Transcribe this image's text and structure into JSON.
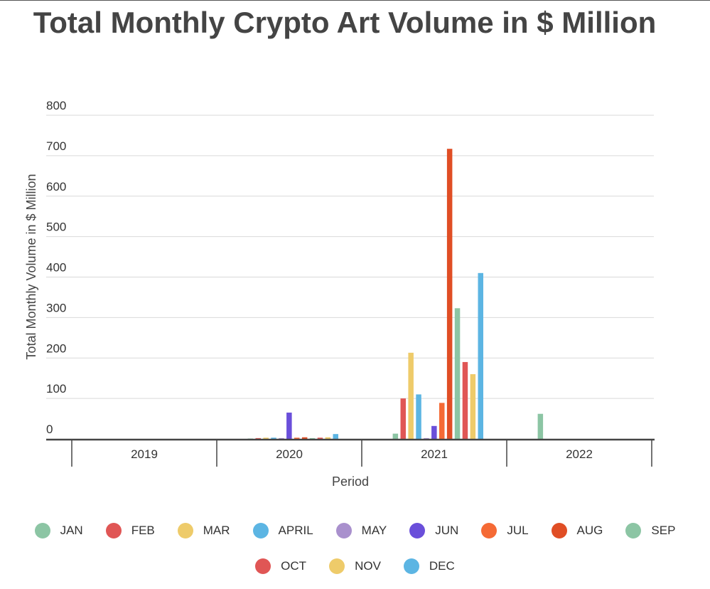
{
  "chart_data": {
    "type": "bar",
    "title": "Total Monthly Crypto Art Volume in $ Million",
    "xlabel": "Period",
    "ylabel": "Total Monthly Volume in $ Million",
    "ylim": [
      0,
      800
    ],
    "yticks": [
      0,
      100,
      200,
      300,
      400,
      500,
      600,
      700,
      800
    ],
    "grid": true,
    "legend_position": "bottom",
    "categories": [
      "2019",
      "2020",
      "2021",
      "2022"
    ],
    "series": [
      {
        "name": "JAN",
        "color": "#8cc5a4",
        "values": [
          0,
          1,
          13,
          62
        ]
      },
      {
        "name": "FEB",
        "color": "#e05655",
        "values": [
          0,
          2,
          100,
          0
        ]
      },
      {
        "name": "MAR",
        "color": "#eecb6a",
        "values": [
          0,
          3,
          213,
          0
        ]
      },
      {
        "name": "APRIL",
        "color": "#5cb5e3",
        "values": [
          0,
          3,
          110,
          0
        ]
      },
      {
        "name": "MAY",
        "color": "#a990cd",
        "values": [
          0,
          2,
          2,
          0
        ]
      },
      {
        "name": "JUN",
        "color": "#6a4fda",
        "values": [
          0,
          65,
          32,
          0
        ]
      },
      {
        "name": "JUL",
        "color": "#f56a35",
        "values": [
          0,
          3,
          89,
          0
        ]
      },
      {
        "name": "AUG",
        "color": "#e04e25",
        "values": [
          0,
          4,
          717,
          0
        ]
      },
      {
        "name": "SEP",
        "color": "#8cc5a4",
        "values": [
          0,
          2,
          323,
          0
        ]
      },
      {
        "name": "OCT",
        "color": "#e05655",
        "values": [
          0,
          3,
          190,
          0
        ]
      },
      {
        "name": "NOV",
        "color": "#eecb6a",
        "values": [
          0,
          4,
          160,
          0
        ]
      },
      {
        "name": "DEC",
        "color": "#5cb5e3",
        "values": [
          0,
          12,
          410,
          0
        ]
      }
    ]
  }
}
